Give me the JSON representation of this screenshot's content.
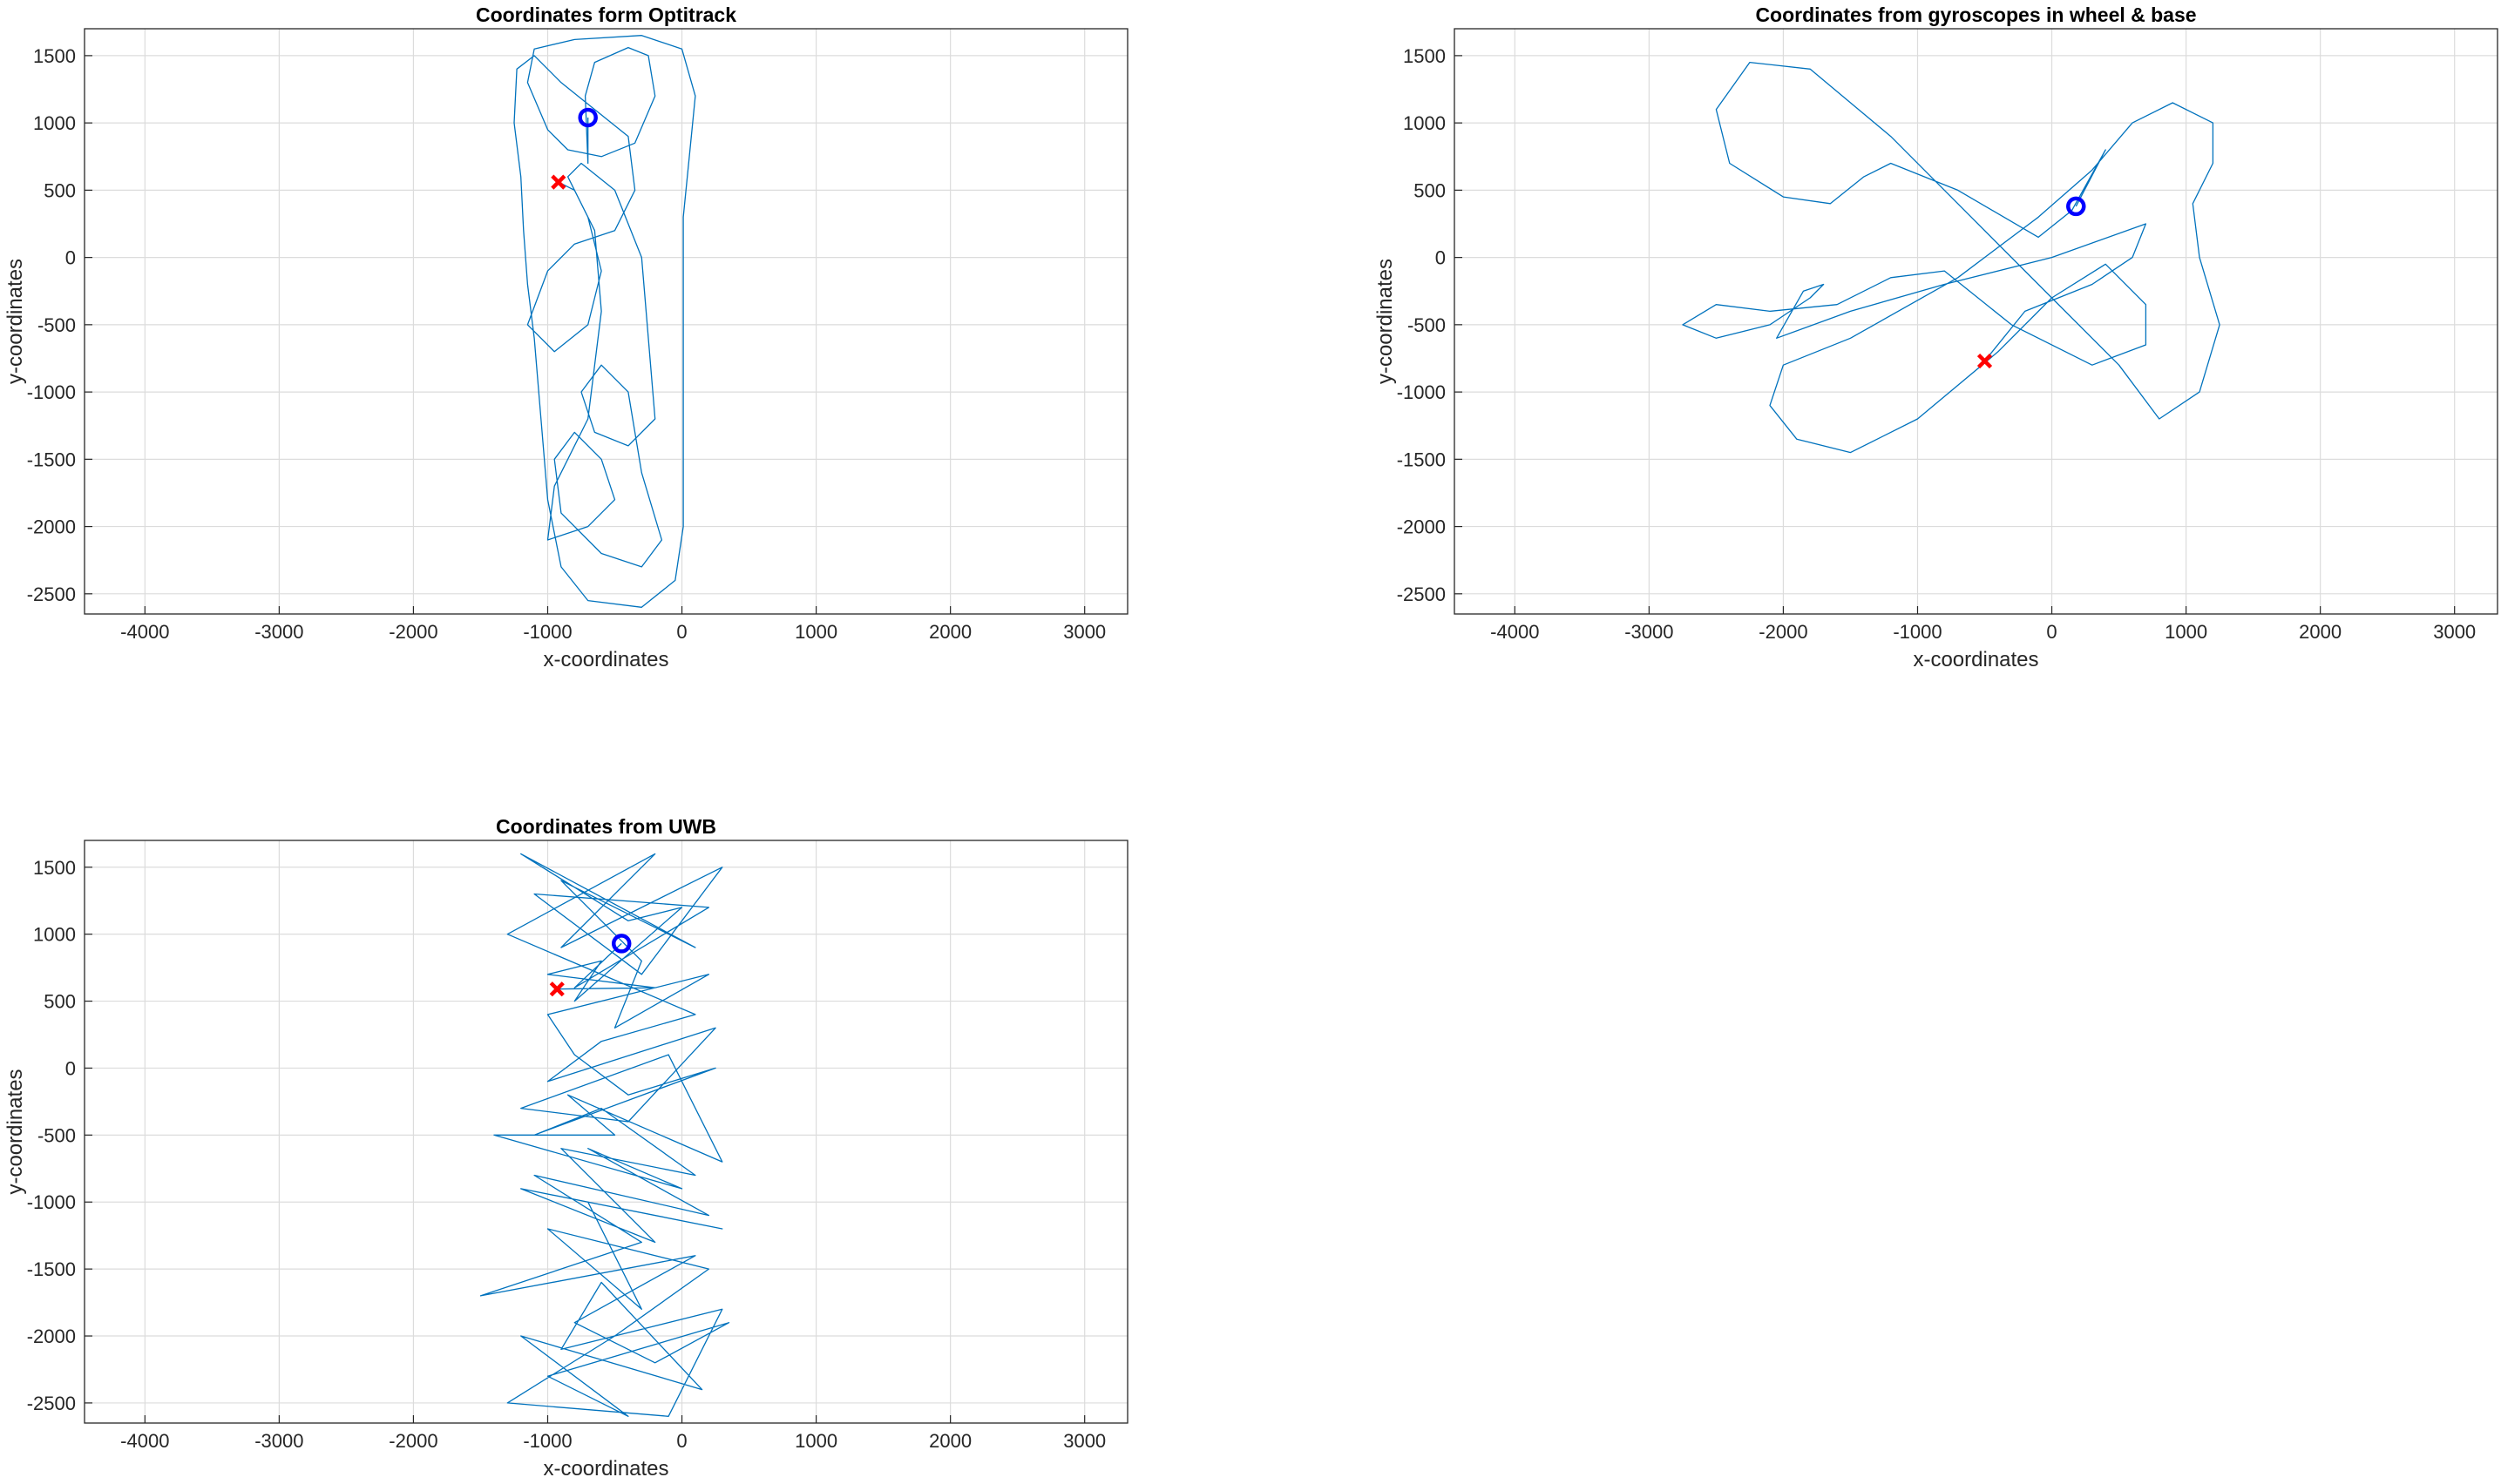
{
  "chart_data": [
    {
      "type": "line",
      "title": "Coordinates form Optitrack",
      "xlabel": "x-coordinates",
      "ylabel": "y-coordinates",
      "xlim": [
        -4450,
        3320
      ],
      "ylim": [
        -2650,
        1700
      ],
      "xticks": [
        -4000,
        -3000,
        -2000,
        -1000,
        0,
        1000,
        2000,
        3000
      ],
      "yticks": [
        -2500,
        -2000,
        -1500,
        -1000,
        -500,
        0,
        500,
        1000,
        1500
      ],
      "grid": true,
      "series": [
        {
          "color": "#0072bd",
          "marker": "none",
          "x": [
            -700,
            -700,
            -720,
            -650,
            -400,
            -250,
            -200,
            -350,
            -600,
            -850,
            -1000,
            -1150,
            -1100,
            -800,
            -300,
            0,
            100,
            60,
            10,
            10,
            10,
            10,
            -50,
            -300,
            -700,
            -900,
            -1000,
            -1050,
            -1100,
            -1150,
            -1180,
            -1200,
            -1250,
            -1230,
            -1100,
            -900,
            -650,
            -400,
            -350,
            -500,
            -800,
            -1000,
            -1150,
            -950,
            -700,
            -600,
            -700,
            -850,
            -750,
            -500,
            -300,
            -250,
            -200,
            -400,
            -650,
            -750,
            -600,
            -400,
            -300,
            -150,
            -300,
            -600,
            -900,
            -950,
            -800,
            -600,
            -500,
            -700,
            -1000,
            -950,
            -700,
            -600,
            -650,
            -800,
            -920
          ],
          "y": [
            1040,
            700,
            1200,
            1450,
            1560,
            1500,
            1200,
            850,
            750,
            800,
            950,
            1300,
            1550,
            1620,
            1650,
            1550,
            1200,
            800,
            300,
            -500,
            -1200,
            -2000,
            -2400,
            -2600,
            -2550,
            -2300,
            -1800,
            -1200,
            -600,
            -200,
            200,
            600,
            1000,
            1400,
            1500,
            1300,
            1100,
            900,
            500,
            200,
            100,
            -100,
            -500,
            -700,
            -500,
            -100,
            300,
            600,
            700,
            500,
            0,
            -600,
            -1200,
            -1400,
            -1300,
            -1000,
            -800,
            -1000,
            -1600,
            -2100,
            -2300,
            -2200,
            -1900,
            -1500,
            -1300,
            -1500,
            -1800,
            -2000,
            -2100,
            -1700,
            -1200,
            -400,
            200,
            500,
            560
          ]
        },
        {
          "color": "#0000ff",
          "marker": "o",
          "x": [
            -700
          ],
          "y": [
            1040
          ]
        },
        {
          "color": "#ff0000",
          "marker": "x",
          "x": [
            -920
          ],
          "y": [
            560
          ]
        }
      ]
    },
    {
      "type": "line",
      "title": "Coordinates from gyroscopes in wheel & base",
      "xlabel": "x-coordinates",
      "ylabel": "y-coordinates",
      "xlim": [
        -4450,
        3320
      ],
      "ylim": [
        -2650,
        1700
      ],
      "xticks": [
        -4000,
        -3000,
        -2000,
        -1000,
        0,
        1000,
        2000,
        3000
      ],
      "yticks": [
        -2500,
        -2000,
        -1500,
        -1000,
        -500,
        0,
        500,
        1000,
        1500
      ],
      "grid": true,
      "series": [
        {
          "color": "#0072bd",
          "marker": "none",
          "x": [
            180,
            400,
            150,
            -100,
            -700,
            -1200,
            -1400,
            -1650,
            -2000,
            -2400,
            -2500,
            -2250,
            -1800,
            -1200,
            -600,
            0,
            500,
            800,
            1100,
            1250,
            1100,
            1050,
            1200,
            1200,
            900,
            600,
            300,
            -100,
            -700,
            -1500,
            -2000,
            -2100,
            -1900,
            -1500,
            -1000,
            -400,
            0,
            400,
            700,
            700,
            300,
            -300,
            -800,
            -1200,
            -1600,
            -2100,
            -2500,
            -2750,
            -2500,
            -2100,
            -1800,
            -1700,
            -1850,
            -2050,
            -1500,
            -800,
            0,
            700,
            600,
            300,
            -200,
            -500
          ],
          "y": [
            380,
            800,
            350,
            150,
            500,
            700,
            600,
            400,
            450,
            700,
            1100,
            1450,
            1400,
            900,
            300,
            -300,
            -800,
            -1200,
            -1000,
            -500,
            0,
            400,
            700,
            1000,
            1150,
            1000,
            650,
            300,
            -150,
            -600,
            -800,
            -1100,
            -1350,
            -1450,
            -1200,
            -700,
            -300,
            -50,
            -350,
            -650,
            -800,
            -500,
            -100,
            -150,
            -350,
            -400,
            -350,
            -500,
            -600,
            -500,
            -300,
            -200,
            -250,
            -600,
            -400,
            -200,
            0,
            250,
            0,
            -200,
            -400,
            -770
          ]
        },
        {
          "color": "#0000ff",
          "marker": "o",
          "x": [
            180
          ],
          "y": [
            380
          ]
        },
        {
          "color": "#ff0000",
          "marker": "x",
          "x": [
            -500
          ],
          "y": [
            -770
          ]
        }
      ]
    },
    {
      "type": "line",
      "title": "Coordinates from UWB",
      "xlabel": "x-coordinates",
      "ylabel": "y-coordinates",
      "xlim": [
        -4450,
        3320
      ],
      "ylim": [
        -2650,
        1700
      ],
      "xticks": [
        -4000,
        -3000,
        -2000,
        -1000,
        0,
        1000,
        2000,
        3000
      ],
      "yticks": [
        -2500,
        -2000,
        -1500,
        -1000,
        -500,
        0,
        500,
        1000,
        1500
      ],
      "grid": true,
      "series": [
        {
          "color": "#0072bd",
          "marker": "none",
          "x": [
            -450,
            -800,
            200,
            -1100,
            -300,
            300,
            -900,
            -200,
            -1300,
            100,
            -600,
            -1000,
            250,
            -400,
            -1200,
            -100,
            300,
            -850,
            -500,
            -1400,
            0,
            -700,
            200,
            -1100,
            -300,
            -1500,
            100,
            -800,
            -200,
            350,
            -1000,
            -400,
            -1200,
            150,
            -600,
            -900,
            300,
            -100,
            -1300,
            -500,
            200,
            -1000,
            -300,
            -700,
            300,
            -1200,
            -200,
            -900,
            100,
            -600,
            -1100,
            250,
            -400,
            -800,
            -1000,
            200,
            -500,
            -300,
            -900,
            100,
            -1200,
            -400,
            0,
            -800,
            -600,
            -1000,
            -200,
            -930
          ],
          "y": [
            930,
            600,
            1200,
            1300,
            700,
            1500,
            900,
            1600,
            1000,
            400,
            200,
            -100,
            300,
            -400,
            -300,
            100,
            -700,
            -200,
            -500,
            -500,
            -900,
            -600,
            -1100,
            -800,
            -1300,
            -1700,
            -1400,
            -1900,
            -2200,
            -1900,
            -2300,
            -2600,
            -2000,
            -2400,
            -1600,
            -2100,
            -1800,
            -2600,
            -2500,
            -2000,
            -1500,
            -1200,
            -1800,
            -1000,
            -1200,
            -900,
            -1300,
            -600,
            -800,
            -300,
            -500,
            0,
            -200,
            100,
            400,
            700,
            300,
            800,
            1400,
            900,
            1600,
            1100,
            1200,
            500,
            800,
            700,
            600,
            590
          ]
        },
        {
          "color": "#0000ff",
          "marker": "o",
          "x": [
            -450
          ],
          "y": [
            930
          ]
        },
        {
          "color": "#ff0000",
          "marker": "x",
          "x": [
            -930
          ],
          "y": [
            590
          ]
        }
      ]
    }
  ]
}
